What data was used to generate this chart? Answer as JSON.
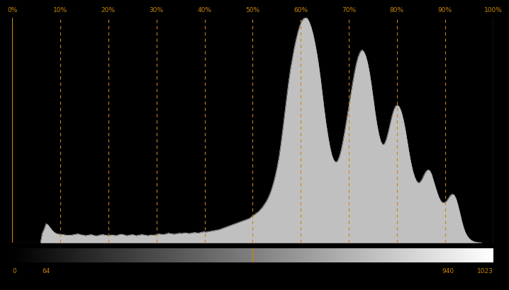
{
  "background_color": "#000000",
  "histogram_fill_color": "#c0c0c0",
  "histogram_edge_color": "#b0b0b0",
  "dashed_line_color": "#c8860a",
  "percent_labels": [
    "0%",
    "10%",
    "20%",
    "30%",
    "40%",
    "50%",
    "60%",
    "70%",
    "80%",
    "90%",
    "100%"
  ],
  "percent_positions": [
    0.0,
    0.1,
    0.2,
    0.3,
    0.4,
    0.5,
    0.6,
    0.7,
    0.8,
    0.9,
    1.0
  ],
  "xmin": 0,
  "xmax": 1023,
  "hist_x": [
    0,
    4,
    8,
    12,
    16,
    20,
    24,
    28,
    32,
    36,
    40,
    44,
    48,
    52,
    56,
    60,
    64,
    68,
    72,
    76,
    80,
    84,
    88,
    92,
    96,
    100,
    104,
    108,
    112,
    116,
    120,
    124,
    128,
    132,
    136,
    140,
    144,
    148,
    152,
    156,
    160,
    164,
    168,
    172,
    176,
    180,
    184,
    188,
    192,
    196,
    200,
    204,
    208,
    212,
    216,
    220,
    224,
    228,
    232,
    236,
    240,
    244,
    248,
    252,
    256,
    260,
    264,
    268,
    272,
    276,
    280,
    284,
    288,
    292,
    296,
    300,
    304,
    308,
    312,
    316,
    320,
    324,
    328,
    332,
    336,
    340,
    344,
    348,
    352,
    356,
    360,
    364,
    368,
    372,
    376,
    380,
    384,
    388,
    392,
    396,
    400,
    404,
    408,
    412,
    416,
    420,
    424,
    428,
    432,
    436,
    440,
    444,
    448,
    452,
    456,
    460,
    464,
    468,
    472,
    476,
    480,
    484,
    488,
    492,
    496,
    500,
    504,
    508,
    512,
    516,
    520,
    524,
    528,
    532,
    536,
    540,
    544,
    548,
    552,
    556,
    560,
    564,
    568,
    572,
    576,
    580,
    584,
    588,
    592,
    596,
    600,
    604,
    608,
    612,
    616,
    620,
    624,
    628,
    632,
    636,
    640,
    644,
    648,
    652,
    656,
    660,
    664,
    668,
    672,
    676,
    680,
    684,
    688,
    692,
    696,
    700,
    704,
    708,
    712,
    716,
    720,
    724,
    728,
    732,
    736,
    740,
    744,
    748,
    752,
    756,
    760,
    764,
    768,
    772,
    776,
    780,
    784,
    788,
    792,
    796,
    800,
    804,
    808,
    812,
    816,
    820,
    824,
    828,
    832,
    836,
    840,
    844,
    848,
    852,
    856,
    860,
    864,
    868,
    872,
    876,
    880,
    884,
    888,
    892,
    896,
    900,
    904,
    908,
    912,
    916,
    920,
    924,
    928,
    932,
    936,
    940,
    944,
    948,
    952,
    956,
    960,
    964,
    968,
    972,
    976,
    980,
    984,
    988,
    992,
    996,
    1000,
    1004,
    1008,
    1012,
    1016,
    1020,
    1023
  ],
  "hist_y": [
    0,
    0,
    0,
    0,
    0,
    0,
    0,
    0,
    0,
    0,
    0,
    0,
    0,
    0,
    0,
    0,
    28,
    40,
    55,
    52,
    45,
    38,
    32,
    28,
    26,
    25,
    24,
    24,
    23,
    22,
    22,
    22,
    23,
    24,
    25,
    26,
    24,
    23,
    22,
    21,
    22,
    23,
    24,
    22,
    21,
    20,
    22,
    23,
    24,
    23,
    22,
    21,
    22,
    23,
    22,
    21,
    22,
    24,
    25,
    24,
    22,
    21,
    22,
    23,
    24,
    22,
    21,
    22,
    23,
    24,
    23,
    22,
    21,
    22,
    23,
    22,
    23,
    24,
    26,
    25,
    24,
    25,
    26,
    28,
    27,
    26,
    25,
    26,
    27,
    28,
    27,
    28,
    29,
    28,
    27,
    28,
    29,
    30,
    29,
    28,
    30,
    31,
    32,
    31,
    32,
    33,
    34,
    35,
    36,
    37,
    38,
    40,
    42,
    44,
    46,
    48,
    50,
    52,
    54,
    56,
    58,
    60,
    62,
    64,
    66,
    68,
    70,
    74,
    78,
    82,
    86,
    90,
    96,
    102,
    110,
    118,
    128,
    140,
    155,
    173,
    195,
    220,
    250,
    288,
    330,
    375,
    420,
    462,
    500,
    530,
    560,
    585,
    607,
    625,
    638,
    645,
    648,
    645,
    635,
    620,
    600,
    575,
    545,
    510,
    470,
    425,
    380,
    340,
    305,
    275,
    252,
    238,
    232,
    235,
    248,
    268,
    295,
    325,
    358,
    392,
    425,
    458,
    488,
    515,
    535,
    548,
    555,
    550,
    538,
    518,
    490,
    455,
    415,
    375,
    340,
    312,
    292,
    282,
    285,
    298,
    318,
    342,
    365,
    383,
    394,
    396,
    390,
    376,
    355,
    328,
    295,
    262,
    232,
    208,
    190,
    178,
    172,
    175,
    183,
    195,
    205,
    210,
    208,
    198,
    180,
    162,
    145,
    130,
    120,
    115,
    116,
    120,
    128,
    136,
    140,
    138,
    128,
    110,
    88,
    65,
    45,
    30,
    20,
    13,
    8,
    5,
    3,
    2,
    1,
    1,
    0,
    0,
    0,
    0,
    0,
    0,
    0
  ]
}
